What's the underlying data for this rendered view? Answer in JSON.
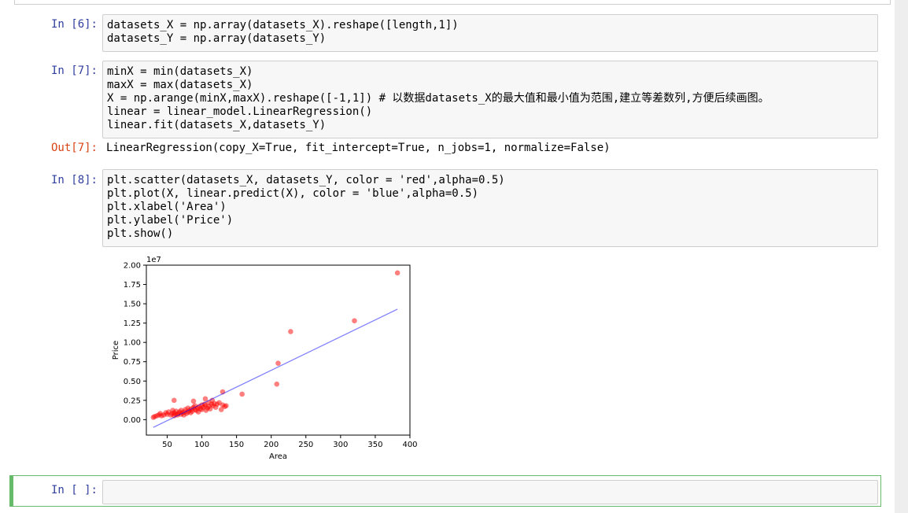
{
  "cells": [
    {
      "prompt": "In [6]:",
      "lines": [
        "datasets_X = np.array(datasets_X).reshape([length,1])",
        "datasets_Y = np.array(datasets_Y)"
      ]
    },
    {
      "prompt": "In [7]:",
      "lines": [
        "minX = min(datasets_X)",
        "maxX = max(datasets_X)",
        "X = np.arange(minX,maxX).reshape([-1,1]) # 以数据datasets_X的最大值和最小值为范围,建立等差数列,方便后续画图。",
        "linear = linear_model.LinearRegression()",
        "linear.fit(datasets_X,datasets_Y)"
      ],
      "output_prompt": "Out[7]:",
      "output_text": "LinearRegression(copy_X=True, fit_intercept=True, n_jobs=1, normalize=False)"
    },
    {
      "prompt": "In [8]:",
      "lines": [
        "plt.scatter(datasets_X, datasets_Y, color = 'red',alpha=0.5)",
        "plt.plot(X, linear.predict(X), color = 'blue',alpha=0.5)",
        "plt.xlabel('Area')",
        "plt.ylabel('Price')",
        "plt.show()"
      ]
    },
    {
      "prompt": "In [ ]:",
      "lines": [
        ""
      ]
    }
  ],
  "chart_data": {
    "type": "scatter",
    "xlabel": "Area",
    "ylabel": "Price",
    "offset_text": "1e7",
    "xlim": [
      20,
      400
    ],
    "ylim": [
      -0.2,
      2.0
    ],
    "y_scale_note": "values in units of 1e7",
    "x_ticks": [
      50,
      100,
      150,
      200,
      250,
      300,
      350,
      400
    ],
    "y_ticks": [
      "0.00",
      "0.25",
      "0.50",
      "0.75",
      "1.00",
      "1.25",
      "1.50",
      "1.75",
      "2.00"
    ],
    "colors": {
      "scatter": "#ff0000",
      "line": "#0000ff"
    },
    "alpha": 0.5,
    "series": [
      {
        "type": "scatter",
        "x": [
          30,
          32,
          35,
          38,
          40,
          42,
          45,
          48,
          50,
          52,
          55,
          57,
          58,
          60,
          60,
          62,
          63,
          65,
          66,
          68,
          70,
          70,
          72,
          74,
          75,
          76,
          78,
          80,
          80,
          82,
          84,
          85,
          86,
          88,
          90,
          90,
          92,
          94,
          95,
          96,
          98,
          100,
          100,
          102,
          104,
          105,
          106,
          108,
          110,
          110,
          112,
          114,
          115,
          116,
          118,
          120,
          122,
          125,
          128,
          130,
          133,
          135,
          60,
          88,
          105,
          130,
          158,
          208,
          210,
          228,
          320,
          382
        ],
        "y": [
          0.03,
          0.04,
          0.05,
          0.06,
          0.08,
          0.05,
          0.06,
          0.09,
          0.07,
          0.1,
          0.06,
          0.08,
          0.12,
          0.05,
          0.09,
          0.07,
          0.11,
          0.06,
          0.08,
          0.1,
          0.07,
          0.12,
          0.09,
          0.06,
          0.1,
          0.13,
          0.08,
          0.1,
          0.15,
          0.12,
          0.09,
          0.14,
          0.11,
          0.16,
          0.13,
          0.18,
          0.12,
          0.15,
          0.1,
          0.17,
          0.14,
          0.19,
          0.13,
          0.16,
          0.2,
          0.18,
          0.12,
          0.15,
          0.22,
          0.17,
          0.14,
          0.2,
          0.25,
          0.18,
          0.21,
          0.16,
          0.2,
          0.22,
          0.13,
          0.19,
          0.17,
          0.18,
          0.25,
          0.24,
          0.27,
          0.36,
          0.33,
          0.46,
          0.73,
          1.14,
          1.28,
          1.9
        ]
      },
      {
        "type": "line",
        "x": [
          30,
          382
        ],
        "y": [
          -0.1,
          1.43
        ]
      }
    ]
  }
}
